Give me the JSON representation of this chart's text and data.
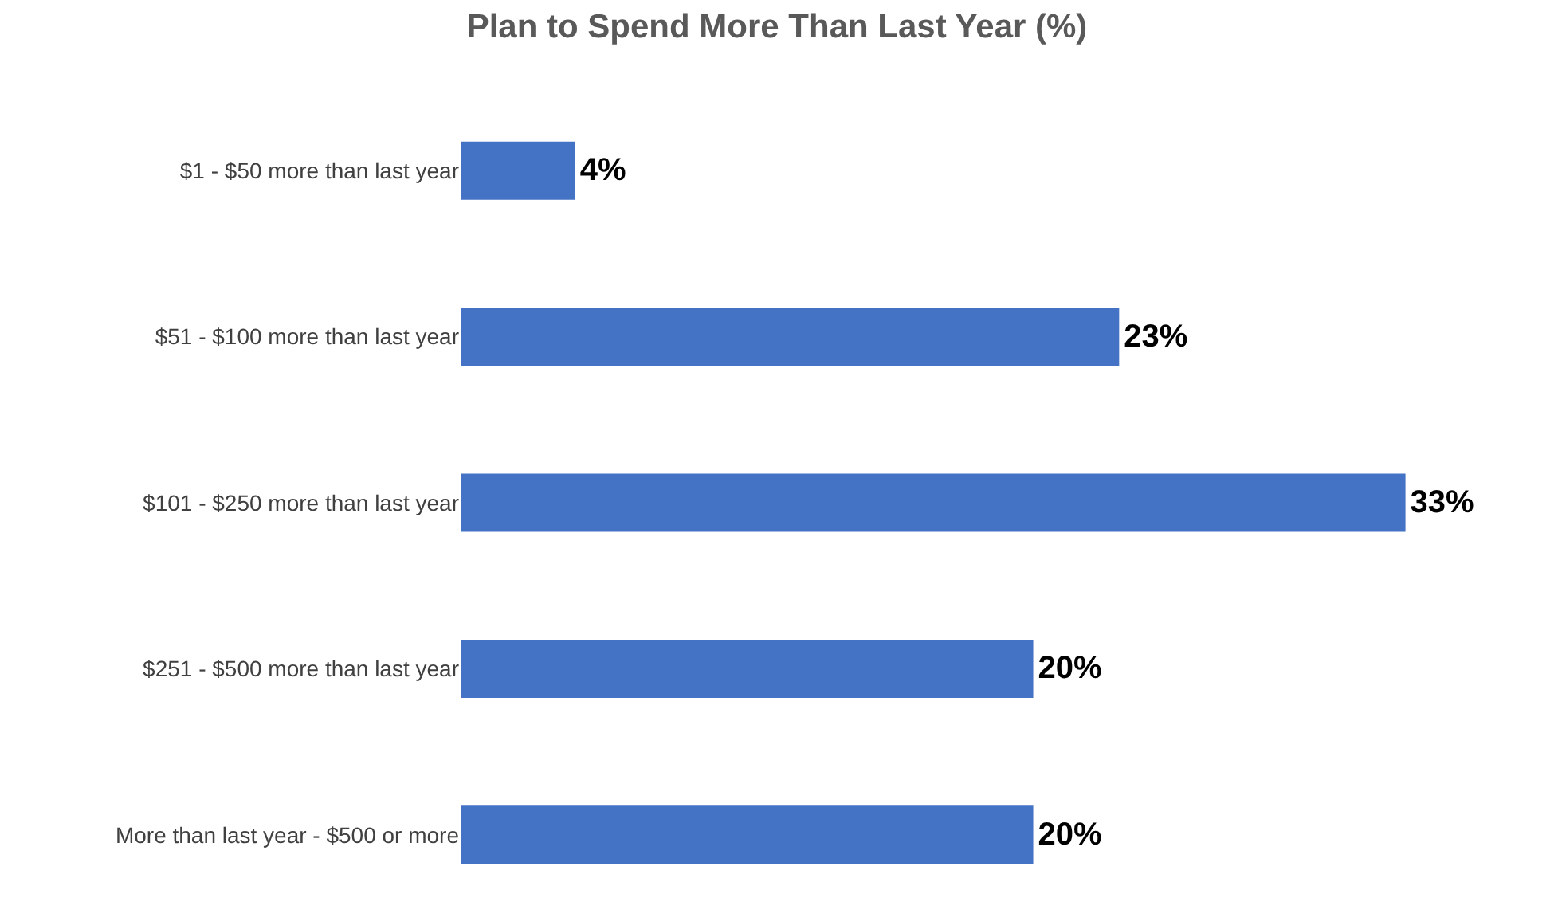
{
  "chart_data": {
    "type": "bar",
    "orientation": "horizontal",
    "title": "Plan to Spend More Than Last Year (%)",
    "categories": [
      "$1 - $50 more than last year",
      "$51 - $100 more than last year",
      "$101 - $250 more than last year",
      "$251 - $500 more than last year",
      "More than last year - $500 or more"
    ],
    "values": [
      4,
      23,
      33,
      20,
      20
    ],
    "value_labels": [
      "4%",
      "23%",
      "33%",
      "20%",
      "20%"
    ],
    "color": "#4472c4",
    "legend": false
  }
}
